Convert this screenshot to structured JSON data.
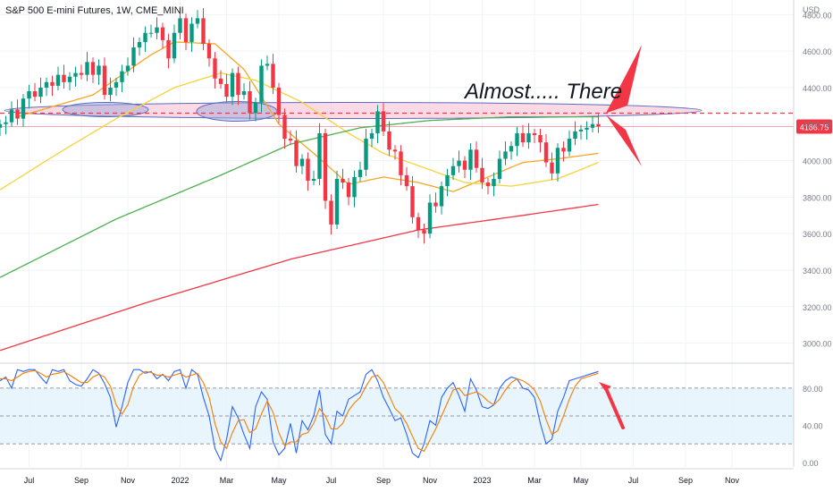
{
  "header": {
    "title": "S&P 500 E-mini Futures, 1W, CME_MINI",
    "currency": "USD"
  },
  "annotation": {
    "text": "Almost..... There"
  },
  "price_tag": {
    "value": "4186.75",
    "color": "#f23645"
  },
  "colors": {
    "up": "#089981",
    "down": "#f23645",
    "ma_orange": "#f5a623",
    "ma_yellow": "#f7d23a",
    "ma_green": "#4caf50",
    "ma_red": "#f23645",
    "stoch_k": "#2962ff",
    "stoch_d": "#f57c00",
    "band": "#e3f2fd",
    "zone_fill": "#f8bbd0",
    "zone_edge": "#5c6bc0",
    "arrow": "#f23645"
  },
  "chart_data": [
    {
      "type": "candlestick",
      "title": "S&P 500 E-mini Futures, 1W, CME_MINI",
      "y_unit": "USD",
      "ylim": [
        2900,
        4880
      ],
      "y_ticks": [
        3000,
        3200,
        3400,
        3600,
        3800,
        4000,
        4200,
        4400,
        4600,
        4800
      ],
      "y_tick_labels": [
        "3000.00",
        "3200.00",
        "3400.00",
        "3600.00",
        "3800.00",
        "4000.00",
        "4200.00",
        "4400.00",
        "4600.00",
        "4800.00"
      ],
      "x_ticks": [
        "Jul",
        "Sep",
        "Nov",
        "2022",
        "Mar",
        "May",
        "Jul",
        "Sep",
        "Nov",
        "2023",
        "Mar",
        "May",
        "Jul",
        "Sep",
        "Nov"
      ],
      "x_tick_bar_index": [
        5,
        14,
        22,
        31,
        39,
        48,
        57,
        66,
        74,
        83,
        92,
        100,
        109,
        118,
        126
      ],
      "last_price": 4186.75,
      "resistance_level": 4260,
      "close": [
        4200,
        4210,
        4280,
        4230,
        4340,
        4380,
        4350,
        4400,
        4430,
        4410,
        4470,
        4430,
        4460,
        4480,
        4470,
        4540,
        4470,
        4520,
        4360,
        4400,
        4430,
        4490,
        4520,
        4620,
        4650,
        4700,
        4700,
        4730,
        4660,
        4560,
        4700,
        4780,
        4650,
        4750,
        4780,
        4640,
        4560,
        4450,
        4420,
        4350,
        4480,
        4360,
        4380,
        4260,
        4320,
        4520,
        4530,
        4400,
        4250,
        4120,
        4110,
        3970,
        4010,
        3890,
        3900,
        4150,
        3780,
        3650,
        3900,
        3880,
        3800,
        3910,
        3950,
        4120,
        4150,
        4270,
        4160,
        4060,
        4050,
        3920,
        3860,
        3690,
        3620,
        3600,
        3770,
        3750,
        3860,
        3920,
        3970,
        4000,
        3950,
        4060,
        3960,
        3880,
        3860,
        3900,
        4010,
        4050,
        4080,
        4150,
        4100,
        4150,
        4140,
        4100,
        3990,
        3930,
        4070,
        4050,
        4120,
        4160,
        4170,
        4180,
        4200,
        4186.75
      ],
      "moving_averages": [
        {
          "name": "",
          "color": "#f5a623",
          "anchors": [
            [
              3,
              4240
            ],
            [
              16,
              4360
            ],
            [
              26,
              4580
            ],
            [
              30,
              4650
            ],
            [
              37,
              4640
            ],
            [
              42,
              4500
            ],
            [
              48,
              4200
            ],
            [
              54,
              4040
            ],
            [
              60,
              3870
            ],
            [
              66,
              3910
            ],
            [
              72,
              3880
            ],
            [
              78,
              3830
            ],
            [
              84,
              3910
            ],
            [
              90,
              3990
            ],
            [
              96,
              4010
            ],
            [
              103,
              4040
            ]
          ]
        },
        {
          "name": "",
          "color": "#f7d23a",
          "anchors": [
            [
              0,
              3840
            ],
            [
              10,
              4040
            ],
            [
              20,
              4230
            ],
            [
              30,
              4400
            ],
            [
              38,
              4480
            ],
            [
              44,
              4440
            ],
            [
              52,
              4320
            ],
            [
              60,
              4150
            ],
            [
              66,
              4040
            ],
            [
              74,
              3950
            ],
            [
              80,
              3880
            ],
            [
              88,
              3860
            ],
            [
              96,
              3900
            ],
            [
              103,
              3990
            ]
          ]
        },
        {
          "name": "",
          "color": "#4caf50",
          "anchors": [
            [
              0,
              3360
            ],
            [
              20,
              3680
            ],
            [
              38,
              3920
            ],
            [
              50,
              4090
            ],
            [
              62,
              4180
            ],
            [
              74,
              4220
            ],
            [
              88,
              4240
            ],
            [
              103,
              4240
            ]
          ]
        },
        {
          "name": "",
          "color": "#f23645",
          "anchors": [
            [
              0,
              2960
            ],
            [
              25,
              3220
            ],
            [
              50,
              3460
            ],
            [
              72,
              3620
            ],
            [
              90,
              3700
            ],
            [
              103,
              3760
            ]
          ]
        }
      ]
    },
    {
      "type": "line",
      "title": "",
      "ylim": [
        -5,
        105
      ],
      "y_ticks": [
        0,
        40,
        80
      ],
      "y_tick_labels": [
        "0.00",
        "40.00",
        "80.00"
      ],
      "band": [
        20,
        80
      ],
      "midline": 50,
      "series": [
        {
          "name": "",
          "color": "#2962ff",
          "values": [
            88,
            92,
            80,
            100,
            98,
            100,
            100,
            92,
            85,
            100,
            98,
            100,
            88,
            84,
            82,
            90,
            100,
            96,
            85,
            70,
            38,
            60,
            86,
            100,
            100,
            96,
            98,
            90,
            95,
            88,
            98,
            100,
            80,
            100,
            95,
            70,
            50,
            15,
            2,
            25,
            60,
            48,
            30,
            15,
            60,
            76,
            68,
            22,
            8,
            15,
            42,
            10,
            45,
            35,
            50,
            78,
            30,
            20,
            55,
            50,
            68,
            72,
            76,
            95,
            100,
            88,
            70,
            58,
            45,
            48,
            30,
            10,
            5,
            20,
            45,
            40,
            70,
            80,
            86,
            72,
            55,
            90,
            78,
            60,
            58,
            62,
            80,
            88,
            92,
            90,
            80,
            78,
            70,
            42,
            20,
            25,
            55,
            70,
            88,
            90,
            92,
            94,
            96,
            98
          ]
        },
        {
          "name": "",
          "color": "#f57c00",
          "values": [
            90,
            90,
            88,
            92,
            96,
            98,
            99,
            96,
            92,
            95,
            96,
            98,
            94,
            90,
            86,
            86,
            92,
            95,
            92,
            82,
            62,
            52,
            62,
            82,
            94,
            98,
            97,
            94,
            94,
            92,
            94,
            96,
            92,
            94,
            96,
            86,
            70,
            42,
            22,
            15,
            32,
            45,
            46,
            32,
            36,
            52,
            66,
            54,
            32,
            18,
            22,
            22,
            30,
            32,
            42,
            58,
            50,
            36,
            36,
            42,
            56,
            64,
            70,
            82,
            92,
            94,
            86,
            72,
            58,
            52,
            42,
            28,
            15,
            12,
            24,
            36,
            50,
            64,
            78,
            80,
            72,
            74,
            76,
            72,
            66,
            62,
            68,
            78,
            86,
            90,
            88,
            84,
            78,
            66,
            46,
            30,
            34,
            50,
            68,
            82,
            90,
            92,
            94,
            96
          ]
        }
      ]
    }
  ]
}
